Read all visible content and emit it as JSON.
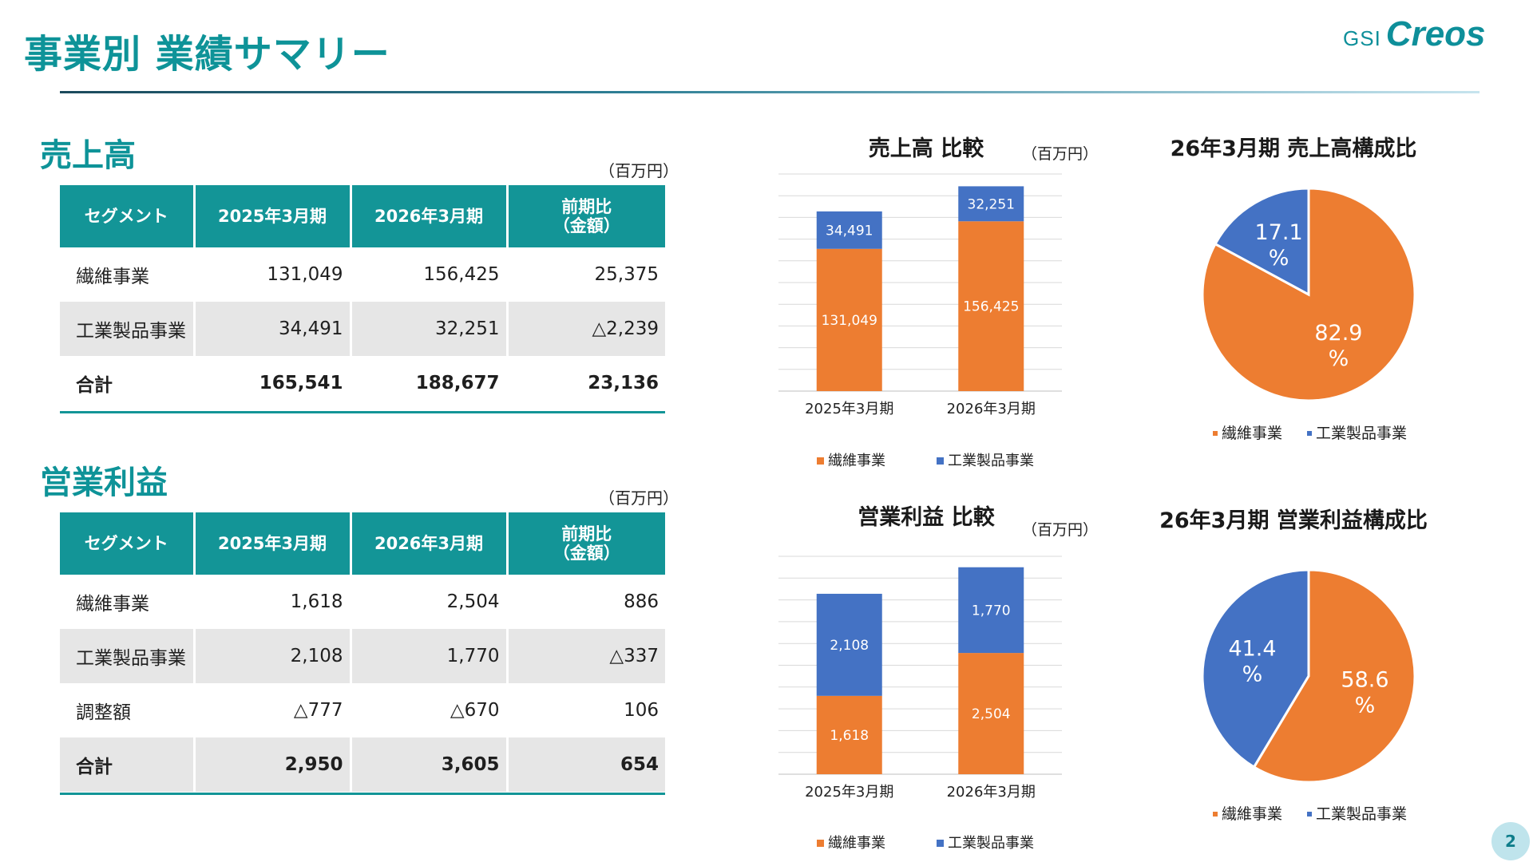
{
  "page_title": "事業別 業績サマリー",
  "logo": {
    "gsi": "GSI",
    "brand": "Creos"
  },
  "page_number": "2",
  "colors": {
    "teal": "#139597",
    "orange": "#ed7d31",
    "blue": "#4472c4"
  },
  "sales": {
    "title": "売上高",
    "unit": "（百万円）",
    "headers": [
      "セグメント",
      "2025年3月期",
      "2026年3月期",
      "前期比\n（金額）"
    ],
    "rows": [
      [
        "繊維事業",
        "131,049",
        "156,425",
        "25,375"
      ],
      [
        "工業製品事業",
        "34,491",
        "32,251",
        "△2,239"
      ],
      [
        "合計",
        "165,541",
        "188,677",
        "23,136"
      ]
    ]
  },
  "profit": {
    "title": "営業利益",
    "unit": "（百万円）",
    "headers": [
      "セグメント",
      "2025年3月期",
      "2026年3月期",
      "前期比\n（金額）"
    ],
    "rows": [
      [
        "繊維事業",
        "1,618",
        "2,504",
        "886"
      ],
      [
        "工業製品事業",
        "2,108",
        "1,770",
        "△337"
      ],
      [
        "調整額",
        "△777",
        "△670",
        "106"
      ],
      [
        "合計",
        "2,950",
        "3,605",
        "654"
      ]
    ]
  },
  "chart_data": [
    {
      "type": "bar",
      "stacked": true,
      "title": "売上高 比較",
      "unit": "（百万円）",
      "categories": [
        "2025年3月期",
        "2026年3月期"
      ],
      "ylim": [
        0,
        200000
      ],
      "grid": true,
      "legend_position": "bottom",
      "series": [
        {
          "name": "繊維事業",
          "values": [
            131049,
            156425
          ],
          "labels": [
            "131,049",
            "156,425"
          ],
          "color": "#ed7d31"
        },
        {
          "name": "工業製品事業",
          "values": [
            34491,
            32251
          ],
          "labels": [
            "34,491",
            "32,251"
          ],
          "color": "#4472c4"
        }
      ]
    },
    {
      "type": "bar",
      "stacked": true,
      "title": "営業利益 比較",
      "unit": "（百万円）",
      "categories": [
        "2025年3月期",
        "2026年3月期"
      ],
      "ylim": [
        0,
        4500
      ],
      "grid": true,
      "legend_position": "bottom",
      "series": [
        {
          "name": "繊維事業",
          "values": [
            1618,
            2504
          ],
          "labels": [
            "1,618",
            "2,504"
          ],
          "color": "#ed7d31"
        },
        {
          "name": "工業製品事業",
          "values": [
            2108,
            1770
          ],
          "labels": [
            "2,108",
            "1,770"
          ],
          "color": "#4472c4"
        }
      ]
    },
    {
      "type": "pie",
      "title": "26年3月期 売上高構成比",
      "legend_position": "bottom",
      "slices": [
        {
          "name": "繊維事業",
          "value": 82.9,
          "label": "82.9\n%",
          "color": "#ed7d31"
        },
        {
          "name": "工業製品事業",
          "value": 17.1,
          "label": "17.1\n%",
          "color": "#4472c4"
        }
      ]
    },
    {
      "type": "pie",
      "title": "26年3月期 営業利益構成比",
      "legend_position": "bottom",
      "slices": [
        {
          "name": "繊維事業",
          "value": 58.6,
          "label": "58.6\n%",
          "color": "#ed7d31"
        },
        {
          "name": "工業製品事業",
          "value": 41.4,
          "label": "41.4\n%",
          "color": "#4472c4"
        }
      ]
    }
  ]
}
